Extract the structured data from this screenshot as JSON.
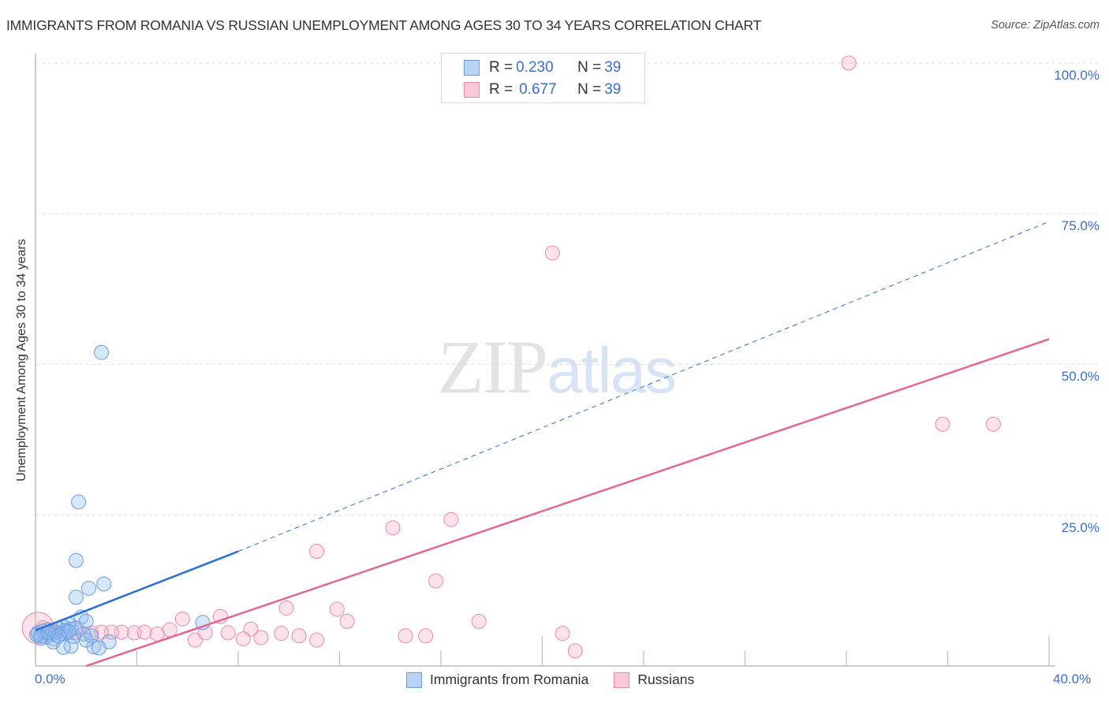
{
  "header": {
    "title": "IMMIGRANTS FROM ROMANIA VS RUSSIAN UNEMPLOYMENT AMONG AGES 30 TO 34 YEARS CORRELATION CHART",
    "source": "Source: ZipAtlas.com"
  },
  "watermark": {
    "zip": "ZIP",
    "atlas": "atlas"
  },
  "legend_top": {
    "rows": [
      {
        "r_label": "R = ",
        "r_value": "0.230",
        "n_label": "N = ",
        "n_value": "39",
        "color": "#b8d3f5",
        "border": "#6b9be0"
      },
      {
        "r_label": "R = ",
        "r_value": "0.677",
        "n_label": "N = ",
        "n_value": "39",
        "color": "#fac8d6",
        "border": "#eb8aa8"
      }
    ]
  },
  "legend_bottom": {
    "items": [
      {
        "label": "Immigrants from Romania",
        "color": "#b8d3f5",
        "border": "#6b9be0"
      },
      {
        "label": "Russians",
        "color": "#fac8d6",
        "border": "#eb8aa8"
      }
    ]
  },
  "axes": {
    "y_label": "Unemployment Among Ages 30 to 34 years",
    "y_ticks": [
      "100.0%",
      "75.0%",
      "50.0%",
      "25.0%"
    ],
    "x_min_label": "0.0%",
    "x_max_label": "40.0%"
  },
  "colors": {
    "blue_fill": "rgba(140,185,240,0.35)",
    "blue_stroke": "#6b9be0",
    "blue_line": "#2a6fd6",
    "pink_fill": "rgba(248,180,200,0.38)",
    "pink_stroke": "#eb8aa8",
    "pink_line": "#e5678f",
    "grid": "#dddddd",
    "axis": "#bbbbbb"
  },
  "chart_data": {
    "type": "scatter",
    "title": "IMMIGRANTS FROM ROMANIA VS RUSSIAN UNEMPLOYMENT AMONG AGES 30 TO 34 YEARS CORRELATION CHART",
    "xlabel": "",
    "ylabel": "Unemployment Among Ages 30 to 34 years",
    "xlim": [
      0,
      40
    ],
    "ylim": [
      0,
      100
    ],
    "x_tick_labels": [
      "0.0%",
      "40.0%"
    ],
    "y_tick_labels": [
      "25.0%",
      "50.0%",
      "75.0%",
      "100.0%"
    ],
    "grid": true,
    "legend_position": "bottom",
    "series": [
      {
        "name": "Immigrants from Romania",
        "r": 0.23,
        "n": 39,
        "points": [
          [
            2.6,
            52.0
          ],
          [
            1.7,
            27.2
          ],
          [
            1.6,
            17.5
          ],
          [
            1.6,
            11.4
          ],
          [
            2.7,
            13.6
          ],
          [
            2.1,
            12.9
          ],
          [
            6.6,
            7.2
          ],
          [
            1.8,
            8.1
          ],
          [
            2.0,
            7.4
          ],
          [
            1.3,
            6.9
          ],
          [
            1.1,
            6.5
          ],
          [
            0.9,
            6.2
          ],
          [
            0.5,
            6.0
          ],
          [
            0.3,
            5.8
          ],
          [
            0.1,
            5.5
          ],
          [
            0.2,
            5.0
          ],
          [
            0.6,
            5.2
          ],
          [
            0.8,
            5.6
          ],
          [
            1.0,
            5.4
          ],
          [
            1.2,
            5.9
          ],
          [
            1.4,
            6.1
          ],
          [
            0.4,
            4.8
          ],
          [
            0.7,
            4.5
          ],
          [
            1.5,
            4.9
          ],
          [
            1.9,
            5.3
          ],
          [
            2.2,
            5.0
          ],
          [
            2.9,
            4.0
          ],
          [
            2.3,
            3.2
          ],
          [
            2.5,
            3.0
          ],
          [
            1.4,
            3.3
          ],
          [
            1.1,
            3.1
          ],
          [
            0.7,
            4.0
          ],
          [
            0.2,
            4.6
          ],
          [
            0.05,
            5.2
          ],
          [
            1.6,
            6.3
          ],
          [
            2.0,
            4.3
          ],
          [
            0.9,
            5.0
          ],
          [
            1.3,
            5.7
          ],
          [
            0.5,
            5.5
          ]
        ],
        "trend": {
          "x0": 0,
          "y0": 5.9,
          "x1": 8.0,
          "y1": 19.0,
          "dashed_to_x": 40,
          "dashed_to_y": 73.7
        }
      },
      {
        "name": "Russians",
        "r": 0.677,
        "n": 39,
        "points": [
          [
            32.1,
            100.0
          ],
          [
            20.4,
            68.5
          ],
          [
            35.8,
            40.1
          ],
          [
            37.8,
            40.1
          ],
          [
            16.4,
            24.3
          ],
          [
            14.1,
            22.9
          ],
          [
            11.1,
            19.0
          ],
          [
            15.8,
            14.1
          ],
          [
            9.9,
            9.6
          ],
          [
            11.9,
            9.4
          ],
          [
            12.3,
            7.4
          ],
          [
            17.5,
            7.4
          ],
          [
            5.8,
            7.8
          ],
          [
            7.3,
            8.2
          ],
          [
            8.5,
            6.1
          ],
          [
            20.8,
            5.4
          ],
          [
            21.3,
            2.5
          ],
          [
            14.6,
            5.0
          ],
          [
            15.4,
            5.0
          ],
          [
            9.7,
            5.4
          ],
          [
            10.4,
            5.0
          ],
          [
            11.1,
            4.3
          ],
          [
            7.6,
            5.5
          ],
          [
            8.2,
            4.5
          ],
          [
            8.9,
            4.7
          ],
          [
            6.3,
            4.3
          ],
          [
            6.7,
            5.5
          ],
          [
            5.3,
            6.0
          ],
          [
            4.8,
            5.3
          ],
          [
            3.9,
            5.5
          ],
          [
            3.4,
            5.6
          ],
          [
            3.0,
            5.6
          ],
          [
            2.6,
            5.6
          ],
          [
            2.2,
            5.5
          ],
          [
            1.6,
            5.6
          ],
          [
            1.2,
            5.5
          ],
          [
            0.6,
            5.8
          ],
          [
            0.3,
            6.3
          ],
          [
            4.3,
            5.6
          ]
        ],
        "trend": {
          "x0": 2.0,
          "y0": 0.0,
          "x1": 40,
          "y1": 54.2
        }
      }
    ]
  }
}
